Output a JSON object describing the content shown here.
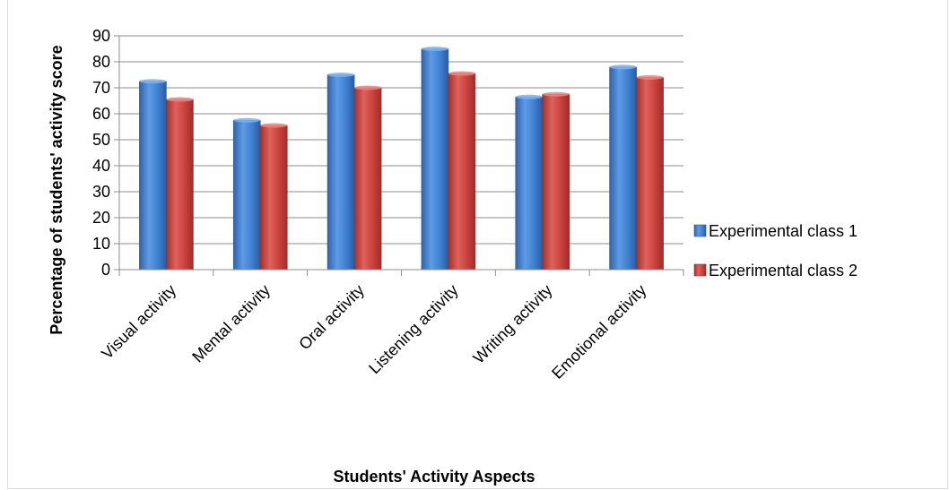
{
  "chart_data": {
    "type": "bar",
    "title": "",
    "xlabel": "Students' Activity Aspects",
    "ylabel": "Percentage of students' activity score",
    "categories": [
      "Visual activity",
      "Mental activity",
      "Oral activity",
      "Listening activity",
      "Writing activity",
      "Emotional activity"
    ],
    "series": [
      {
        "name": "Experimental class 1",
        "values": [
          72.5,
          57.5,
          75,
          85,
          66.5,
          78
        ],
        "color": "#3f7fd0"
      },
      {
        "name": "Experimental class 2",
        "values": [
          65.5,
          55.5,
          70,
          75.5,
          67.5,
          74
        ],
        "color": "#c9403c"
      }
    ],
    "ylim": [
      0,
      90
    ],
    "yticks": [
      0,
      10,
      20,
      30,
      40,
      50,
      60,
      70,
      80,
      90
    ],
    "grid": true,
    "legend_position": "right"
  }
}
